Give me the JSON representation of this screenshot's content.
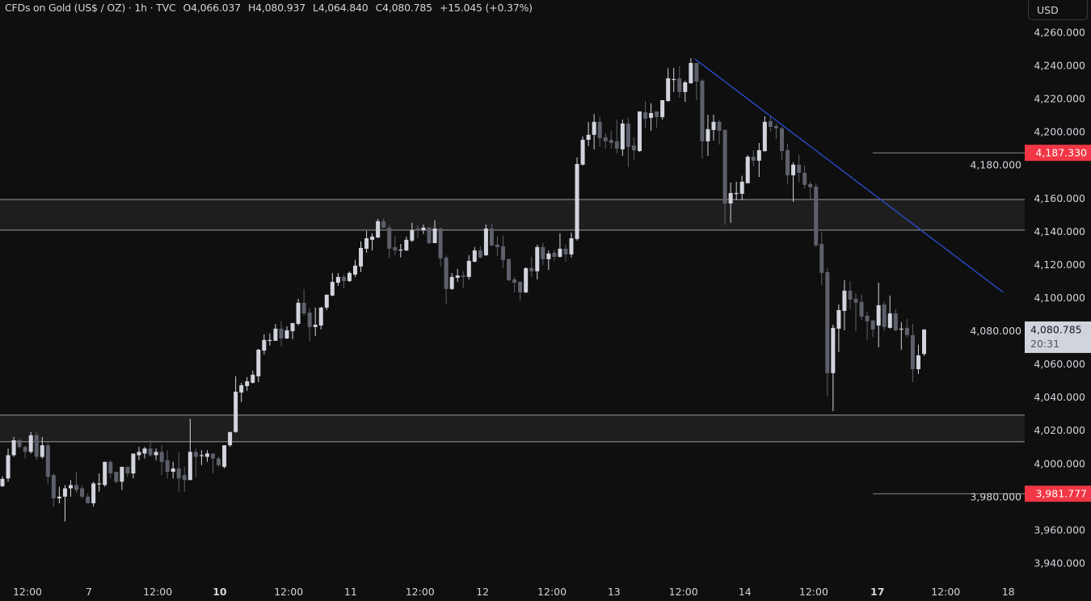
{
  "header": {
    "symbol": "CFDs on Gold (US$ / OZ) · 1h · TVC",
    "open": "O4,066.037",
    "high": "H4,080.937",
    "low": "L4,064.840",
    "close": "C4,080.785",
    "change": "+15.045 (+0.37%)"
  },
  "price_axis": {
    "currency": "USD",
    "ticks": [
      "4,260.000",
      "4,240.000",
      "4,220.000",
      "4,200.000",
      "4,180.000",
      "4,160.000",
      "4,140.000",
      "4,120.000",
      "4,100.000",
      "4,080.000",
      "4,060.000",
      "4,040.000",
      "4,020.000",
      "4,000.000",
      "3,980.000",
      "3,960.000",
      "3,940.000"
    ],
    "tick_values": [
      4260,
      4240,
      4220,
      4200,
      4180,
      4160,
      4140,
      4120,
      4100,
      4080,
      4060,
      4040,
      4020,
      4000,
      3980,
      3960,
      3940
    ],
    "current_price": {
      "label": "4,080.785",
      "countdown": "20:31",
      "value": 4080.785
    },
    "alert_levels": [
      {
        "label": "4,187.330",
        "value": 4187.33
      },
      {
        "label": "3,981.777",
        "value": 3981.777
      }
    ]
  },
  "time_axis": {
    "ticks": [
      {
        "label": "12:00",
        "bar": 4.4,
        "bold": false
      },
      {
        "label": "7",
        "bar": 15.2,
        "bold": false
      },
      {
        "label": "12:00",
        "bar": 27.3,
        "bold": false
      },
      {
        "label": "10",
        "bar": 38.2,
        "bold": true
      },
      {
        "label": "12:00",
        "bar": 50.3,
        "bold": false
      },
      {
        "label": "11",
        "bar": 61.2,
        "bold": false
      },
      {
        "label": "12:00",
        "bar": 73.4,
        "bold": false
      },
      {
        "label": "12",
        "bar": 84.4,
        "bold": false
      },
      {
        "label": "12:00",
        "bar": 96.6,
        "bold": false
      },
      {
        "label": "13",
        "bar": 107.5,
        "bold": false
      },
      {
        "label": "12:00",
        "bar": 119.7,
        "bold": false
      },
      {
        "label": "14",
        "bar": 130.5,
        "bold": false
      },
      {
        "label": "12:00",
        "bar": 142.6,
        "bold": false
      },
      {
        "label": "17",
        "bar": 153.8,
        "bold": true
      },
      {
        "label": "12:00",
        "bar": 165.8,
        "bold": false
      },
      {
        "label": "18",
        "bar": 176.8,
        "bold": false
      }
    ]
  },
  "colors": {
    "background": "#0f0f0f",
    "up": "#d1d4dc",
    "down": "#5d606b",
    "trendline": "#2a4fd1",
    "zone_fill": "#1e1e1e",
    "zone_border": "#9a9a9a",
    "alert": "#f23645",
    "current_label_bg": "#d1d4dc"
  },
  "chart_data": {
    "type": "candlestick",
    "interval": "1h",
    "ylim": [
      3930,
      4275
    ],
    "zones": [
      {
        "top": 4159.2,
        "bottom": 4140.7
      },
      {
        "top": 4029.2,
        "bottom": 4013.1
      }
    ],
    "trendline": {
      "start_bar": 121.7,
      "start_price": 4244.0,
      "end_bar": 175.9,
      "end_price": 4103.2
    },
    "ohlc": [
      [
        3986.3,
        3992.2,
        3985.8,
        3990.7
      ],
      [
        3991,
        4009,
        3989,
        4005
      ],
      [
        4005,
        4016,
        4004,
        4014
      ],
      [
        4014,
        4015,
        4009,
        4010
      ],
      [
        4010,
        4011,
        4003,
        4007
      ],
      [
        4007,
        4019,
        4006,
        4017
      ],
      [
        4017,
        4019,
        4002,
        4004
      ],
      [
        4004,
        4016,
        4003,
        4011
      ],
      [
        4011,
        4013,
        3988,
        3992
      ],
      [
        3993,
        3994,
        3974,
        3979
      ],
      [
        3979,
        3986,
        3976,
        3980
      ],
      [
        3980,
        3987,
        3965,
        3985
      ],
      [
        3985,
        3990,
        3980,
        3987
      ],
      [
        3987,
        3995,
        3982,
        3984
      ],
      [
        3985,
        3987,
        3979,
        3980
      ],
      [
        3980,
        3982,
        3976,
        3976
      ],
      [
        3976,
        3989,
        3974,
        3988
      ],
      [
        3988,
        3994,
        3983,
        3988
      ],
      [
        3987,
        4001,
        3986,
        4001
      ],
      [
        4001,
        4002,
        3991,
        3994
      ],
      [
        3995,
        3995,
        3988,
        3989
      ],
      [
        3989,
        3998,
        3984,
        3998
      ],
      [
        3998,
        3998,
        3992,
        3994
      ],
      [
        3994,
        4006,
        3991,
        4006
      ],
      [
        4005,
        4010,
        4002,
        4007
      ],
      [
        4006,
        4010,
        4003,
        4009
      ],
      [
        4009,
        4014,
        4004,
        4005
      ],
      [
        4005,
        4009,
        4002,
        4007
      ],
      [
        4007,
        4011,
        3993,
        4001
      ],
      [
        4002,
        4008,
        3991,
        3995
      ],
      [
        3995,
        4001,
        3991,
        3997
      ],
      [
        3997,
        4007,
        3983,
        3991
      ],
      [
        3993,
        3998,
        3983,
        3990
      ],
      [
        3990,
        4027,
        3990,
        4007
      ],
      [
        4007,
        4009,
        3992,
        4004
      ],
      [
        4005,
        4008,
        3999,
        4005
      ],
      [
        4004,
        4008,
        4001,
        4006
      ],
      [
        4006,
        4006,
        3994,
        4003
      ],
      [
        4003,
        4004,
        3998,
        3999
      ],
      [
        3998,
        4011,
        3997,
        4011
      ],
      [
        4011,
        4019,
        4010,
        4019
      ],
      [
        4019,
        4052.6,
        4018.5,
        4043.3
      ],
      [
        4042.8,
        4048.7,
        4037,
        4047.2
      ],
      [
        4046.7,
        4052.1,
        4043.8,
        4049.6
      ],
      [
        4048.7,
        4056,
        4048.2,
        4053.5
      ],
      [
        4052.6,
        4069.1,
        4049.1,
        4068.6
      ],
      [
        4068.1,
        4077.9,
        4065.7,
        4074.5
      ],
      [
        4074.5,
        4078.4,
        4071.1,
        4074.5
      ],
      [
        4074,
        4084.2,
        4074,
        4081.3
      ],
      [
        4081.3,
        4085.7,
        4070.6,
        4075.4
      ],
      [
        4075.4,
        4082.7,
        4075,
        4080.3
      ],
      [
        4079.8,
        4084.7,
        4075,
        4084.7
      ],
      [
        4084.2,
        4099.3,
        4083.2,
        4096.9
      ],
      [
        4096.9,
        4105.2,
        4089.1,
        4090.5
      ],
      [
        4091,
        4093.5,
        4073.5,
        4082.3
      ],
      [
        4082.3,
        4094,
        4076.9,
        4083.7
      ],
      [
        4083.2,
        4094.5,
        4080.8,
        4094
      ],
      [
        4094,
        4101.8,
        4092.5,
        4101.8
      ],
      [
        4101.3,
        4114.8,
        4100.8,
        4109.5
      ],
      [
        4109,
        4114.9,
        4107.1,
        4112.5
      ],
      [
        4112.5,
        4113.9,
        4105.6,
        4110
      ],
      [
        4110,
        4115.8,
        4109.5,
        4114.9
      ],
      [
        4113.9,
        4122.8,
        4112.5,
        4119.3
      ],
      [
        4118.8,
        4133.9,
        4115.4,
        4130
      ],
      [
        4129.5,
        4140.2,
        4127.1,
        4135.8
      ],
      [
        4134.9,
        4138.8,
        4128.5,
        4136.8
      ],
      [
        4136.3,
        4147.5,
        4135.8,
        4146.1
      ],
      [
        4146.1,
        4148,
        4142.2,
        4142.2
      ],
      [
        4142.2,
        4143.6,
        4123.7,
        4129.5
      ],
      [
        4130.5,
        4137.3,
        4125.6,
        4128.5
      ],
      [
        4129,
        4132.4,
        4124.2,
        4129
      ],
      [
        4128.5,
        4136.8,
        4128,
        4134.9
      ],
      [
        4134.4,
        4145.1,
        4133.4,
        4140.7
      ],
      [
        4141.7,
        4143.6,
        4135.8,
        4141.2
      ],
      [
        4140.7,
        4144.1,
        4138.3,
        4142.2
      ],
      [
        4142.2,
        4142.7,
        4132.4,
        4132.9
      ],
      [
        4132.9,
        4146.6,
        4132.9,
        4141.7
      ],
      [
        4141.7,
        4142.2,
        4118.8,
        4123.7
      ],
      [
        4124.2,
        4125.5,
        4095.9,
        4105.2
      ],
      [
        4105.2,
        4114.9,
        4104.7,
        4112.5
      ],
      [
        4112,
        4117.3,
        4109.5,
        4113.4
      ],
      [
        4113.4,
        4115.9,
        4105.6,
        4112.5
      ],
      [
        4112.5,
        4125.6,
        4111,
        4122.2
      ],
      [
        4121.7,
        4130.5,
        4121.2,
        4128.5
      ],
      [
        4128.5,
        4131,
        4123.7,
        4124.2
      ],
      [
        4125.6,
        4144.1,
        4125.1,
        4141.7
      ],
      [
        4141.7,
        4144.6,
        4131,
        4131.5
      ],
      [
        4132,
        4136.8,
        4125.1,
        4130.5
      ],
      [
        4131,
        4137.3,
        4117.8,
        4122.7
      ],
      [
        4123.2,
        4123.7,
        4110,
        4110.5
      ],
      [
        4111,
        4112.5,
        4103.2,
        4109
      ],
      [
        4109.5,
        4110,
        4098.3,
        4103.2
      ],
      [
        4103.2,
        4118.3,
        4102.7,
        4117.8
      ],
      [
        4117.8,
        4124.6,
        4112.5,
        4115.9
      ],
      [
        4115.9,
        4131.9,
        4111,
        4130.5
      ],
      [
        4130.5,
        4132.9,
        4119.8,
        4123.2
      ],
      [
        4123.2,
        4128.5,
        4116.8,
        4126.6
      ],
      [
        4127.1,
        4129,
        4122.2,
        4124.6
      ],
      [
        4124.6,
        4138.8,
        4124.2,
        4129.5
      ],
      [
        4129.5,
        4131.9,
        4121.7,
        4126.1
      ],
      [
        4126.1,
        4139.2,
        4124.2,
        4135.8
      ],
      [
        4135.4,
        4184.5,
        4134.4,
        4180.6
      ],
      [
        4180.2,
        4197.2,
        4179.7,
        4195.2
      ],
      [
        4195.2,
        4205.9,
        4191.4,
        4198.2
      ],
      [
        4198.2,
        4210.8,
        4189.4,
        4206
      ],
      [
        4206,
        4209.4,
        4190.9,
        4196.2
      ],
      [
        4196.7,
        4199.1,
        4189.9,
        4194.3
      ],
      [
        4195.2,
        4200.6,
        4189.9,
        4193.3
      ],
      [
        4194.3,
        4207.4,
        4187,
        4189.9
      ],
      [
        4189.4,
        4207.4,
        4185.5,
        4205
      ],
      [
        4205,
        4208.4,
        4178.7,
        4190.9
      ],
      [
        4191.8,
        4196.7,
        4183.1,
        4188.9
      ],
      [
        4188.4,
        4212.3,
        4187.9,
        4212.3
      ],
      [
        4211.8,
        4218.6,
        4202.1,
        4207.9
      ],
      [
        4208.4,
        4217.2,
        4200.6,
        4211.3
      ],
      [
        4212.3,
        4212.3,
        4202.6,
        4208.9
      ],
      [
        4208.9,
        4219.1,
        4207.4,
        4219.1
      ],
      [
        4218.6,
        4238.4,
        4218.1,
        4232.3
      ],
      [
        4231.8,
        4238.6,
        4224,
        4231.8
      ],
      [
        4232.3,
        4239.6,
        4220.6,
        4224
      ],
      [
        4224,
        4230.8,
        4218.1,
        4229.8
      ],
      [
        4229.3,
        4244.4,
        4228.9,
        4241.5
      ],
      [
        4241.5,
        4241.5,
        4219.1,
        4230.3
      ],
      [
        4230.8,
        4231.8,
        4184,
        4194.3
      ],
      [
        4194.3,
        4210.3,
        4185.5,
        4201.6
      ],
      [
        4201.1,
        4210.3,
        4194.8,
        4206
      ],
      [
        4206,
        4207.4,
        4192.3,
        4200.6
      ],
      [
        4201.1,
        4201.6,
        4144.1,
        4156.8
      ],
      [
        4156.8,
        4169.4,
        4145.1,
        4163.1
      ],
      [
        4163.1,
        4169.9,
        4158.7,
        4163.1
      ],
      [
        4162.6,
        4173.5,
        4158.7,
        4169.9
      ],
      [
        4169,
        4186,
        4169,
        4185
      ],
      [
        4185,
        4188.9,
        4179.2,
        4182.6
      ],
      [
        4182.6,
        4193.3,
        4172.8,
        4188.9
      ],
      [
        4188.4,
        4209.4,
        4187.9,
        4206
      ],
      [
        4206.5,
        4209.9,
        4200.1,
        4203
      ],
      [
        4203.5,
        4205,
        4195.7,
        4202.1
      ],
      [
        4202.1,
        4203,
        4183,
        4188.4
      ],
      [
        4188.9,
        4192.8,
        4168.5,
        4173.8
      ],
      [
        4173.8,
        4181.6,
        4157.8,
        4180.2
      ],
      [
        4180.2,
        4186,
        4169.4,
        4175.3
      ],
      [
        4175.3,
        4179.7,
        4166,
        4168
      ],
      [
        4168.5,
        4169.9,
        4158.7,
        4166.5
      ],
      [
        4167,
        4169,
        4130.5,
        4131.5
      ],
      [
        4132.4,
        4139.7,
        4107.6,
        4114.9
      ],
      [
        4115.4,
        4117.8,
        4040.4,
        4054.5
      ],
      [
        4054.5,
        4083.7,
        4031.6,
        4081.8
      ],
      [
        4081.3,
        4095.9,
        4067.2,
        4092.5
      ],
      [
        4092,
        4110.5,
        4080.3,
        4104.2
      ],
      [
        4104.2,
        4110,
        4093,
        4098.8
      ],
      [
        4099.3,
        4102.7,
        4079.8,
        4096.9
      ],
      [
        4097.4,
        4101.8,
        4086.6,
        4088.6
      ],
      [
        4089.1,
        4091.5,
        4074.5,
        4085.7
      ],
      [
        4086.2,
        4086.6,
        4076.4,
        4080.8
      ],
      [
        4083.2,
        4109,
        4070.1,
        4095.4
      ],
      [
        4095.9,
        4097.4,
        4079.8,
        4082.3
      ],
      [
        4081.8,
        4101.3,
        4081.3,
        4090.5
      ],
      [
        4090.5,
        4093,
        4079.8,
        4080.3
      ],
      [
        4081.3,
        4085.2,
        4068.6,
        4081.3
      ],
      [
        4081.8,
        4087.1,
        4076,
        4077.4
      ],
      [
        4077.4,
        4084.2,
        4049.1,
        4056.9
      ],
      [
        4056.9,
        4071.6,
        4054,
        4065.2
      ],
      [
        4066.037,
        4080.937,
        4064.84,
        4080.785
      ]
    ]
  }
}
